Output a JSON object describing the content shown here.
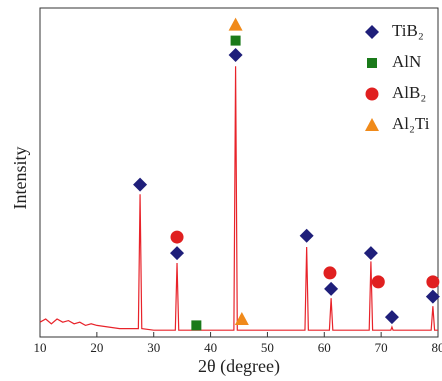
{
  "chart_data": {
    "type": "line",
    "xlabel": "2θ (degree)",
    "ylabel": "Intensity",
    "xlim": [
      10,
      80
    ],
    "xticks": [
      10,
      20,
      30,
      40,
      50,
      60,
      70,
      80
    ],
    "ylim": [
      0,
      100
    ],
    "x": [
      10,
      11,
      12,
      13,
      14,
      15,
      16,
      17,
      18,
      19,
      20,
      22,
      24,
      26,
      27.3,
      27.6,
      27.9,
      30,
      33.8,
      34.1,
      34.4,
      38,
      44.1,
      44.4,
      44.7,
      50,
      56.6,
      56.9,
      57.2,
      60.9,
      61.2,
      61.5,
      65,
      67.9,
      68.2,
      68.5,
      71.7,
      71.9,
      72.1,
      76,
      78.8,
      79.1,
      79.4,
      80
    ],
    "series": [
      {
        "color": "#e8232a",
        "values": [
          4,
          5,
          3.5,
          5,
          4,
          4.5,
          3.5,
          4,
          3,
          3.5,
          3,
          2.5,
          2,
          2,
          2,
          44,
          2,
          1.5,
          1.5,
          22.5,
          1.5,
          1.5,
          1.5,
          84,
          1.5,
          1.5,
          1.5,
          27.5,
          1.5,
          1.5,
          11.5,
          1.5,
          1.5,
          1.5,
          23,
          1.5,
          1.5,
          2.5,
          1.5,
          1.5,
          1.5,
          9,
          1.5,
          1.5
        ]
      }
    ],
    "phases": [
      {
        "name": "TiB₂",
        "color": "#1f1f7a",
        "marker": "diamond",
        "x": [
          27.6,
          34.1,
          44.4,
          56.9,
          61.2,
          68.2,
          71.9,
          79.1
        ],
        "y": [
          47,
          25.6,
          87.5,
          31,
          14.4,
          25.6,
          5.6,
          12
        ]
      },
      {
        "name": "AlN",
        "color": "#1a7a1a",
        "marker": "square",
        "x": [
          37.5,
          44.4
        ],
        "y": [
          3,
          92
        ]
      },
      {
        "name": "AlB₂",
        "color": "#e02020",
        "marker": "circle",
        "x": [
          34.1,
          61.0,
          69.5,
          79.1
        ],
        "y": [
          30.6,
          19.4,
          16.6,
          16.6
        ]
      },
      {
        "name": "Al₂Ti",
        "color": "#f08a1a",
        "marker": "triangle",
        "x": [
          45.5,
          44.4
        ],
        "y": [
          5,
          97
        ]
      }
    ]
  }
}
